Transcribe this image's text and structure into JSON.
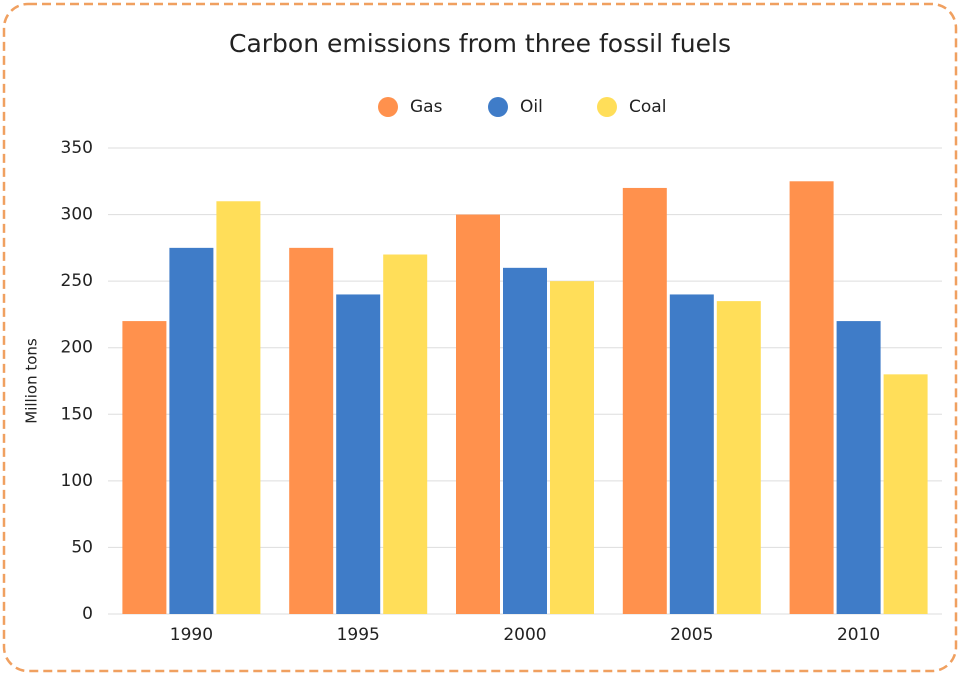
{
  "chart_data": {
    "type": "bar",
    "title": "Carbon emissions from three fossil fuels",
    "y_label": "Million tons",
    "categories": [
      "1990",
      "1995",
      "2000",
      "2005",
      "2010"
    ],
    "series": [
      {
        "name": "Gas",
        "color": "#FF914D",
        "values": [
          220,
          275,
          300,
          320,
          325
        ]
      },
      {
        "name": "Oil",
        "color": "#3F7CC8",
        "values": [
          275,
          240,
          260,
          240,
          220
        ]
      },
      {
        "name": "Coal",
        "color": "#FFDE59",
        "values": [
          310,
          270,
          250,
          235,
          180
        ]
      }
    ],
    "ylim": [
      0,
      350
    ],
    "yticks": [
      0,
      50,
      100,
      150,
      200,
      250,
      300,
      350
    ],
    "grid": true,
    "legend": "top"
  }
}
